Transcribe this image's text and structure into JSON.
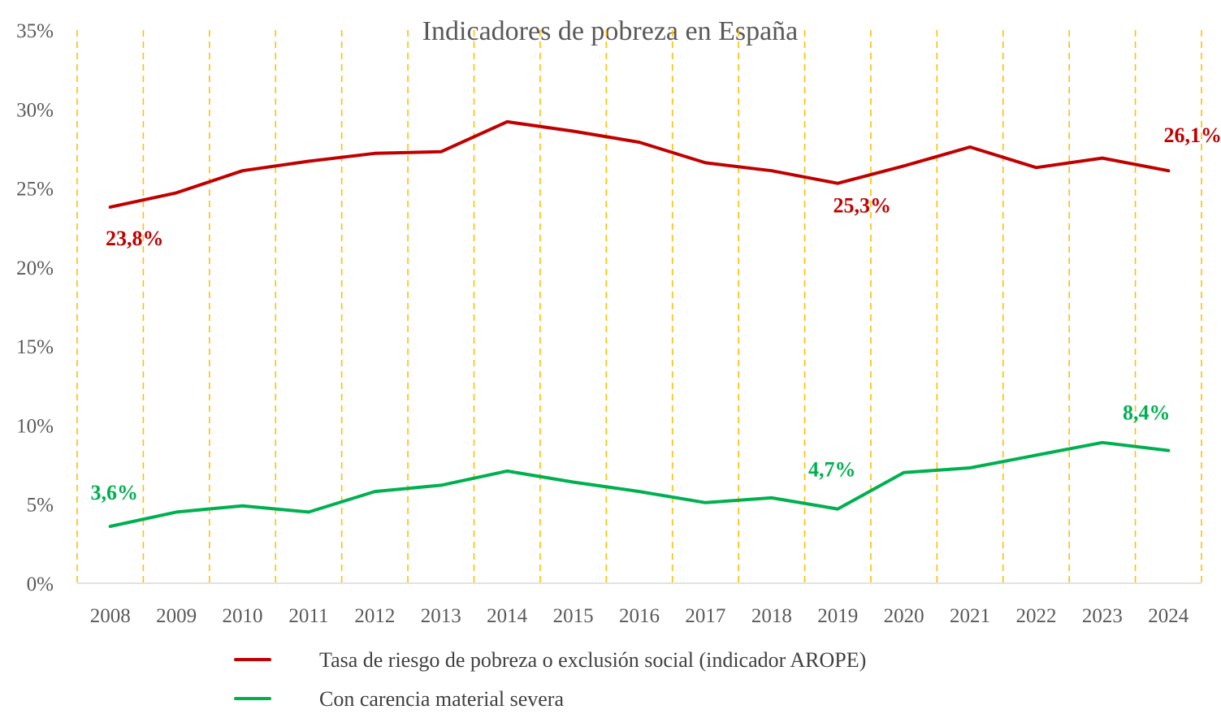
{
  "chart_data": {
    "type": "line",
    "title": "Indicadores de pobreza en España",
    "xlabel": "",
    "ylabel": "",
    "categories": [
      "2008",
      "2009",
      "2010",
      "2011",
      "2012",
      "2013",
      "2014",
      "2015",
      "2016",
      "2017",
      "2018",
      "2019",
      "2020",
      "2021",
      "2022",
      "2023",
      "2024"
    ],
    "ylim": [
      0,
      35
    ],
    "yticks": [
      0,
      5,
      10,
      15,
      20,
      25,
      30,
      35
    ],
    "ytick_labels": [
      "0%",
      "5%",
      "10%",
      "15%",
      "20%",
      "25%",
      "30%",
      "35%"
    ],
    "grid": "vertical dashed",
    "legend_position": "bottom",
    "series": [
      {
        "name": "Tasa de riesgo de pobreza o exclusión social (indicador AROPE)",
        "color": "#C00000",
        "values": [
          23.8,
          24.7,
          26.1,
          26.7,
          27.2,
          27.3,
          29.2,
          28.6,
          27.9,
          26.6,
          26.1,
          25.3,
          26.4,
          27.6,
          26.3,
          26.9,
          26.1
        ],
        "labels": [
          {
            "index": 0,
            "text": "23,8%"
          },
          {
            "index": 11,
            "text": "25,3%"
          },
          {
            "index": 16,
            "text": "26,1%"
          }
        ]
      },
      {
        "name": "Con carencia material severa",
        "color": "#00B050",
        "values": [
          3.6,
          4.5,
          4.9,
          4.5,
          5.8,
          6.2,
          7.1,
          6.4,
          5.8,
          5.1,
          5.4,
          4.7,
          7.0,
          7.3,
          8.1,
          8.9,
          8.4
        ],
        "labels": [
          {
            "index": 0,
            "text": "3,6%"
          },
          {
            "index": 11,
            "text": "4,7%"
          },
          {
            "index": 16,
            "text": "8,4%"
          }
        ]
      }
    ]
  },
  "colors": {
    "gridline": "#FFC000",
    "axis": "#D9D9D9",
    "text": "#595959"
  }
}
